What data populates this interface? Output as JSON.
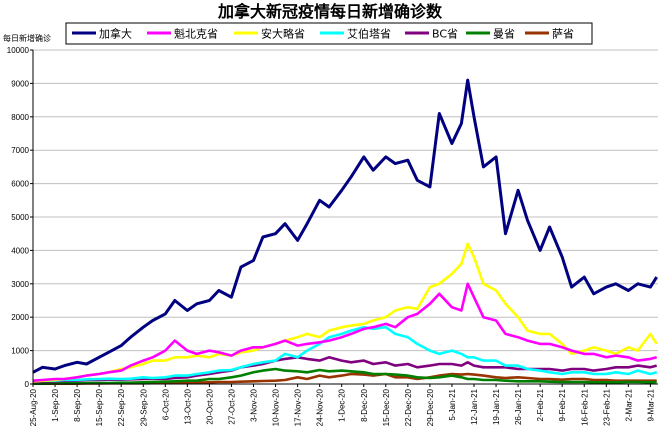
{
  "chart_data": {
    "type": "line",
    "title": "加拿大新冠疫情每日新增确诊数",
    "ylabel": "每日新增确诊",
    "xlabel": "",
    "ylim": [
      0,
      10000
    ],
    "yticks": [
      0,
      1000,
      2000,
      3000,
      4000,
      5000,
      6000,
      7000,
      8000,
      9000,
      10000
    ],
    "grid": "horizontal",
    "legend_position": "top",
    "xtick_labels": [
      "25-Aug-20",
      "1-Sep-20",
      "8-Sep-20",
      "15-Sep-20",
      "22-Sep-20",
      "29-Sep-20",
      "6-Oct-20",
      "13-Oct-20",
      "20-Oct-20",
      "27-Oct-20",
      "3-Nov-20",
      "10-Nov-20",
      "17-Nov-20",
      "24-Nov-20",
      "1-Dec-20",
      "8-Dec-20",
      "15-Dec-20",
      "22-Dec-20",
      "29-Dec-20",
      "5-Jan-21",
      "12-Jan-21",
      "19-Jan-21",
      "26-Jan-21",
      "2-Feb-21",
      "9-Feb-21",
      "16-Feb-21",
      "23-Feb-21",
      "2-Mar-21",
      "9-Mar-21"
    ],
    "x": [
      "2020-08-25",
      "2020-08-28",
      "2020-09-01",
      "2020-09-04",
      "2020-09-08",
      "2020-09-11",
      "2020-09-15",
      "2020-09-18",
      "2020-09-22",
      "2020-09-25",
      "2020-09-29",
      "2020-10-02",
      "2020-10-06",
      "2020-10-09",
      "2020-10-13",
      "2020-10-16",
      "2020-10-20",
      "2020-10-23",
      "2020-10-27",
      "2020-10-30",
      "2020-11-03",
      "2020-11-06",
      "2020-11-10",
      "2020-11-13",
      "2020-11-17",
      "2020-11-20",
      "2020-11-24",
      "2020-11-27",
      "2020-12-01",
      "2020-12-04",
      "2020-12-08",
      "2020-12-11",
      "2020-12-15",
      "2020-12-18",
      "2020-12-22",
      "2020-12-25",
      "2020-12-29",
      "2021-01-01",
      "2021-01-05",
      "2021-01-08",
      "2021-01-10",
      "2021-01-12",
      "2021-01-15",
      "2021-01-19",
      "2021-01-22",
      "2021-01-26",
      "2021-01-29",
      "2021-02-02",
      "2021-02-05",
      "2021-02-09",
      "2021-02-12",
      "2021-02-16",
      "2021-02-19",
      "2021-02-23",
      "2021-02-26",
      "2021-03-02",
      "2021-03-05",
      "2021-03-09",
      "2021-03-11"
    ],
    "series": [
      {
        "name": "加拿大",
        "color": "#000080",
        "values": [
          350,
          500,
          450,
          550,
          650,
          600,
          800,
          950,
          1150,
          1400,
          1700,
          1900,
          2100,
          2500,
          2200,
          2400,
          2500,
          2800,
          2600,
          3500,
          3700,
          4400,
          4500,
          4800,
          4300,
          4800,
          5500,
          5300,
          5800,
          6200,
          6800,
          6400,
          6800,
          6600,
          6700,
          6100,
          5900,
          8100,
          7200,
          7800,
          9100,
          8000,
          6500,
          6800,
          4500,
          5800,
          4900,
          4000,
          4700,
          3800,
          2900,
          3200,
          2700,
          2900,
          3000,
          2800,
          3000,
          2900,
          3200
        ]
      },
      {
        "name": "魁北克省",
        "color": "#FF00FF",
        "values": [
          100,
          120,
          150,
          150,
          200,
          250,
          300,
          350,
          400,
          550,
          700,
          800,
          1000,
          1300,
          1000,
          900,
          1000,
          950,
          850,
          1000,
          1100,
          1100,
          1200,
          1300,
          1150,
          1200,
          1250,
          1300,
          1400,
          1500,
          1650,
          1700,
          1800,
          1700,
          2000,
          2100,
          2400,
          2700,
          2300,
          2200,
          3000,
          2600,
          2000,
          1900,
          1500,
          1400,
          1300,
          1200,
          1200,
          1100,
          1000,
          900,
          900,
          800,
          850,
          800,
          700,
          750,
          800
        ]
      },
      {
        "name": "安大略省",
        "color": "#FFFF00",
        "values": [
          80,
          100,
          120,
          150,
          200,
          250,
          300,
          350,
          450,
          500,
          600,
          700,
          700,
          800,
          800,
          850,
          800,
          900,
          850,
          950,
          1000,
          1100,
          1200,
          1300,
          1400,
          1500,
          1400,
          1600,
          1700,
          1750,
          1800,
          1900,
          2000,
          2200,
          2300,
          2250,
          2900,
          3000,
          3300,
          3600,
          4200,
          3800,
          3000,
          2800,
          2400,
          2000,
          1600,
          1500,
          1500,
          1200,
          900,
          1000,
          1100,
          1000,
          900,
          1100,
          1000,
          1500,
          1200
        ]
      },
      {
        "name": "艾伯塔省",
        "color": "#00FFFF",
        "values": [
          80,
          100,
          100,
          120,
          120,
          140,
          150,
          160,
          150,
          160,
          200,
          180,
          200,
          250,
          250,
          300,
          350,
          400,
          420,
          500,
          600,
          650,
          700,
          900,
          800,
          1000,
          1200,
          1400,
          1500,
          1600,
          1700,
          1650,
          1700,
          1500,
          1400,
          1200,
          1000,
          900,
          1000,
          900,
          800,
          800,
          700,
          700,
          550,
          550,
          450,
          400,
          350,
          300,
          350,
          350,
          300,
          300,
          350,
          300,
          400,
          300,
          350
        ]
      },
      {
        "name": "BC省",
        "color": "#800080",
        "values": [
          60,
          80,
          80,
          100,
          100,
          120,
          120,
          130,
          130,
          140,
          150,
          160,
          150,
          180,
          200,
          250,
          300,
          350,
          400,
          500,
          550,
          600,
          700,
          750,
          800,
          750,
          700,
          800,
          700,
          650,
          700,
          600,
          650,
          550,
          600,
          500,
          550,
          600,
          600,
          550,
          650,
          550,
          500,
          500,
          500,
          450,
          450,
          450,
          450,
          400,
          450,
          450,
          400,
          450,
          500,
          500,
          550,
          500,
          550
        ]
      },
      {
        "name": "曼省",
        "color": "#008000",
        "values": [
          10,
          10,
          20,
          20,
          20,
          30,
          30,
          30,
          40,
          40,
          50,
          60,
          70,
          80,
          100,
          100,
          150,
          150,
          200,
          250,
          350,
          400,
          450,
          400,
          380,
          350,
          420,
          380,
          400,
          380,
          350,
          300,
          300,
          280,
          250,
          200,
          180,
          200,
          250,
          200,
          150,
          150,
          120,
          120,
          100,
          80,
          80,
          80,
          70,
          60,
          60,
          60,
          50,
          50,
          50,
          60,
          60,
          50,
          60
        ]
      },
      {
        "name": "萨省",
        "color": "#993300",
        "values": [
          10,
          10,
          10,
          10,
          10,
          15,
          15,
          20,
          20,
          20,
          20,
          25,
          30,
          30,
          40,
          40,
          50,
          60,
          60,
          70,
          80,
          90,
          100,
          120,
          200,
          150,
          250,
          200,
          250,
          300,
          280,
          250,
          300,
          200,
          200,
          150,
          200,
          250,
          300,
          280,
          300,
          280,
          250,
          200,
          180,
          200,
          180,
          150,
          150,
          130,
          150,
          150,
          120,
          120,
          100,
          100,
          100,
          100,
          100
        ]
      }
    ]
  }
}
